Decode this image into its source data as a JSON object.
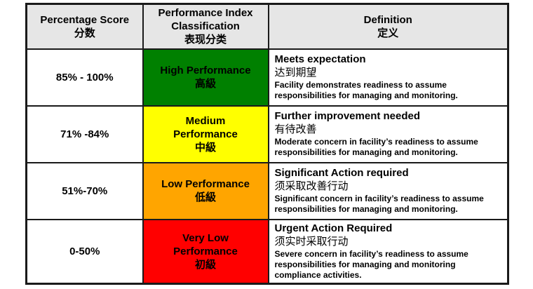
{
  "colors": {
    "header_bg": "#e6e6e6",
    "border": "#1a1a1a",
    "high": "#008000",
    "medium": "#ffff00",
    "low": "#ffa500",
    "very_low": "#ff0000"
  },
  "header": {
    "score_en": "Percentage Score",
    "score_zh": "分数",
    "class_en": "Performance Index Classification",
    "class_zh": "表现分类",
    "def_en": "Definition",
    "def_zh": "定义"
  },
  "rows": [
    {
      "score": "85% - 100%",
      "class_en": "High Performance",
      "class_zh": "高級",
      "color": "#008000",
      "def_title": "Meets expectation",
      "def_zh": "达到期望",
      "def_desc": "Facility demonstrates readiness to assume responsibilities for managing and monitoring."
    },
    {
      "score": "71% -84%",
      "class_en": "Medium Performance",
      "class_zh": "中級",
      "color": "#ffff00",
      "def_title": "Further improvement needed",
      "def_zh": "有待改善",
      "def_desc": "Moderate concern in facility’s readiness to assume responsibilities for managing and monitoring."
    },
    {
      "score": "51%-70%",
      "class_en": "Low Performance",
      "class_zh": "低級",
      "color": "#ffa500",
      "def_title": "Significant Action required",
      "def_zh": "须采取改善行动",
      "def_desc": "Significant concern in facility’s readiness to assume responsibilities for managing and monitoring."
    },
    {
      "score": "0-50%",
      "class_en": "Very Low Performance",
      "class_zh": "初級",
      "color": "#ff0000",
      "def_title": "Urgent Action Required",
      "def_zh": "须实时采取行动",
      "def_desc": "Severe concern in facility’s readiness to assume responsibilities for managing and monitoring compliance activities."
    }
  ]
}
